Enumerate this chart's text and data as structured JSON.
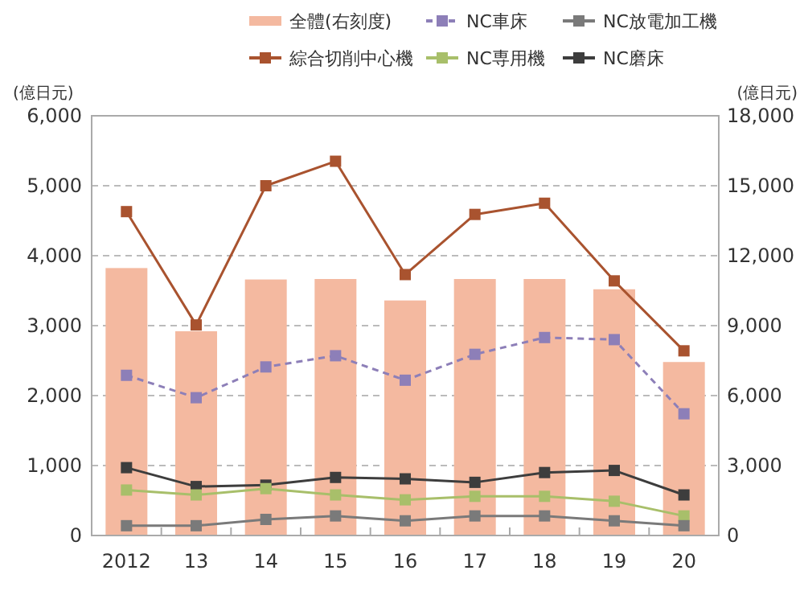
{
  "chart_data": {
    "type": "line",
    "ylabel": "(億日元)",
    "y2label": "(億日元)",
    "categories": [
      "2012",
      "13",
      "14",
      "15",
      "16",
      "17",
      "18",
      "19",
      "20"
    ],
    "ylim": [
      0,
      6000
    ],
    "yticks": [
      {
        "value": 0,
        "label": "0"
      },
      {
        "value": 1000,
        "label": "1,000"
      },
      {
        "value": 2000,
        "label": "2,000"
      },
      {
        "value": 3000,
        "label": "3,000"
      },
      {
        "value": 4000,
        "label": "4,000"
      },
      {
        "value": 5000,
        "label": "5,000"
      },
      {
        "value": 6000,
        "label": "6,000"
      }
    ],
    "y2lim": [
      0,
      18000
    ],
    "y2ticks": [
      {
        "value": 0,
        "label": "0"
      },
      {
        "value": 3000,
        "label": "3,000"
      },
      {
        "value": 6000,
        "label": "6,000"
      },
      {
        "value": 9000,
        "label": "9,000"
      },
      {
        "value": 12000,
        "label": "12,000"
      },
      {
        "value": 15000,
        "label": "15,000"
      },
      {
        "value": 18000,
        "label": "18,000"
      }
    ],
    "grid": "y",
    "legend": "top",
    "marker": "square",
    "series": [
      {
        "name": "全體(右刻度)",
        "type": "bar",
        "axis": "y2",
        "color": "#f4b9a0",
        "values": [
          11470,
          8760,
          10980,
          11000,
          10080,
          11000,
          11000,
          10560,
          7440
        ]
      },
      {
        "name": "NC車床",
        "color": "#8d7fb8",
        "line_style": "dashed",
        "values": [
          2290,
          1970,
          2410,
          2570,
          2220,
          2590,
          2830,
          2800,
          1740
        ]
      },
      {
        "name": "NC放電加工機",
        "color": "#7a7a7a",
        "values": [
          140,
          140,
          230,
          280,
          210,
          280,
          280,
          210,
          140
        ]
      },
      {
        "name": "綜合切削中心機",
        "color": "#a9532f",
        "values": [
          4630,
          3010,
          5000,
          5350,
          3730,
          4590,
          4750,
          3640,
          2640
        ]
      },
      {
        "name": "NC専用機",
        "color": "#a8bf6a",
        "values": [
          650,
          580,
          670,
          580,
          510,
          560,
          560,
          490,
          280
        ]
      },
      {
        "name": "NC磨床",
        "color": "#3d3d3d",
        "values": [
          970,
          700,
          720,
          830,
          810,
          760,
          900,
          930,
          580
        ]
      }
    ]
  }
}
